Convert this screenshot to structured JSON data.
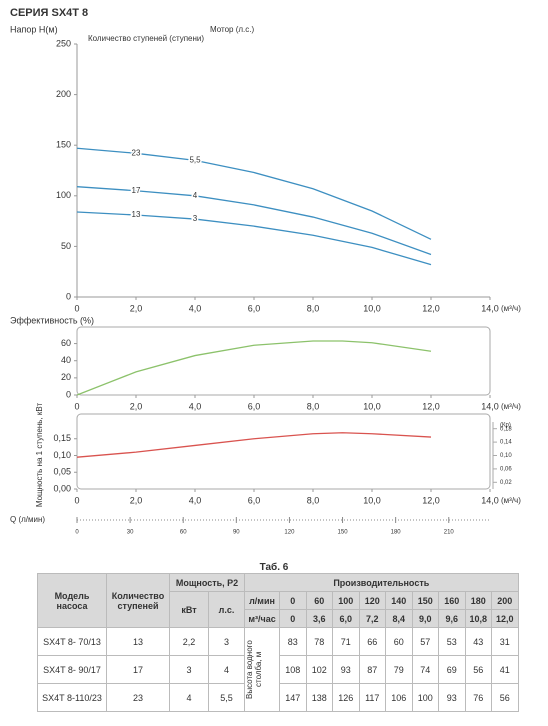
{
  "title": "СЕРИЯ SX4T 8",
  "chart_data": [
    {
      "type": "line",
      "ylabel": "Напор H(м)",
      "stage_label": "Количество ступеней (ступени)",
      "motor_label": "Мотор (л.с.)",
      "x": [
        0,
        2,
        4,
        6,
        8,
        10,
        12
      ],
      "series": [
        {
          "name": "23",
          "motor": "5,5",
          "color": "#3d8fc1",
          "values": [
            147,
            142,
            135,
            123,
            107,
            85,
            57
          ]
        },
        {
          "name": "17",
          "motor": "4",
          "color": "#3d8fc1",
          "values": [
            109,
            105,
            100,
            91,
            79,
            63,
            42
          ]
        },
        {
          "name": "13",
          "motor": "3",
          "color": "#3d8fc1",
          "values": [
            84,
            81,
            77,
            70,
            61,
            49,
            32
          ]
        }
      ],
      "xlim": [
        0,
        14
      ],
      "xticks": [
        0,
        {
          "value": 2,
          "label": "2,0"
        },
        {
          "value": 4,
          "label": "4,0"
        },
        {
          "value": 6,
          "label": "6,0"
        },
        {
          "value": 8,
          "label": "8,0"
        },
        {
          "value": 10,
          "label": "10,0"
        },
        {
          "value": 12,
          "label": "12,0"
        },
        {
          "value": 14,
          "label": "14,0"
        }
      ],
      "xunit": "(м³/ч)",
      "ylim": [
        0,
        250
      ],
      "yticks": [
        0,
        50,
        100,
        150,
        200,
        250
      ]
    },
    {
      "type": "line",
      "ylabel": "Эффективность (%)",
      "x": [
        0,
        2,
        4,
        6,
        8,
        9,
        10,
        12
      ],
      "series": [
        {
          "color": "#8cc26b",
          "values": [
            0,
            27,
            46,
            58,
            63,
            63,
            61,
            51
          ]
        }
      ],
      "xlim": [
        0,
        14
      ],
      "xticks": [
        0,
        {
          "value": 2,
          "label": "2,0"
        },
        {
          "value": 4,
          "label": "4,0"
        },
        {
          "value": 6,
          "label": "6,0"
        },
        {
          "value": 8,
          "label": "8,0"
        },
        {
          "value": 10,
          "label": "10,0"
        },
        {
          "value": 12,
          "label": "12,0"
        },
        {
          "value": 14,
          "label": "14,0"
        }
      ],
      "xunit": "(м³/ч)",
      "ylim": [
        0,
        70
      ],
      "yticks": [
        0,
        20,
        40,
        60
      ]
    },
    {
      "type": "line",
      "ylabel": "Мощность на 1 ступень, кВт",
      "y2label": "(Кр)",
      "x": [
        0,
        2,
        4,
        6,
        8,
        9,
        10,
        12
      ],
      "series": [
        {
          "color": "#d9534f",
          "values": [
            0.095,
            0.11,
            0.13,
            0.15,
            0.165,
            0.168,
            0.165,
            0.155
          ]
        }
      ],
      "xlim": [
        0,
        14
      ],
      "xticks": [
        0,
        {
          "value": 2,
          "label": "2,0"
        },
        {
          "value": 4,
          "label": "4,0"
        },
        {
          "value": 6,
          "label": "6,0"
        },
        {
          "value": 8,
          "label": "8,0"
        },
        {
          "value": 10,
          "label": "10,0"
        },
        {
          "value": 12,
          "label": "12,0"
        },
        {
          "value": 14,
          "label": "14,0"
        }
      ],
      "xunit": "(м³/ч)",
      "ylim": [
        0,
        0.2
      ],
      "yticks": [
        {
          "value": 0,
          "label": "0,00"
        },
        {
          "value": 0.05,
          "label": "0,05"
        },
        {
          "value": 0.1,
          "label": "0,10"
        },
        {
          "value": 0.15,
          "label": "0,15"
        }
      ],
      "y2lim": [
        0,
        0.2
      ],
      "y2ticks": [
        {
          "value": 0.02,
          "label": "0,02"
        },
        {
          "value": 0.06,
          "label": "0,06"
        },
        {
          "value": 0.1,
          "label": "0,10"
        },
        {
          "value": 0.14,
          "label": "0,14"
        },
        {
          "value": 0.18,
          "label": "0,18"
        }
      ],
      "q_axis": {
        "label": "Q (л/мин)",
        "lim": [
          0,
          233.3
        ],
        "ticks": [
          0,
          30,
          60,
          90,
          120,
          150,
          180,
          210
        ]
      }
    }
  ],
  "table": {
    "title": "Таб. 6",
    "headers": [
      "Модель насоса",
      "Количество ступеней",
      "Мощность, P2",
      "Производительность"
    ],
    "power_units": [
      "кВт",
      "л.с."
    ],
    "flow_units": [
      "л/мин",
      "м³/час"
    ],
    "flow_lpm": [
      "0",
      "60",
      "100",
      "120",
      "140",
      "150",
      "160",
      "180",
      "200"
    ],
    "flow_m3h": [
      "0",
      "3,6",
      "6,0",
      "7,2",
      "8,4",
      "9,0",
      "9,6",
      "10,8",
      "12,0"
    ],
    "height_label": "Высота водного столба, м",
    "rows": [
      {
        "model": "SX4T 8- 70/13",
        "stages": "13",
        "kw": "2,2",
        "hp": "3",
        "heights": [
          "83",
          "78",
          "71",
          "66",
          "60",
          "57",
          "53",
          "43",
          "31"
        ]
      },
      {
        "model": "SX4T 8- 90/17",
        "stages": "17",
        "kw": "3",
        "hp": "4",
        "heights": [
          "108",
          "102",
          "93",
          "87",
          "79",
          "74",
          "69",
          "56",
          "41"
        ]
      },
      {
        "model": "SX4T 8-110/23",
        "stages": "23",
        "kw": "4",
        "hp": "5,5",
        "heights": [
          "147",
          "138",
          "126",
          "117",
          "106",
          "100",
          "93",
          "76",
          "56"
        ]
      }
    ]
  }
}
